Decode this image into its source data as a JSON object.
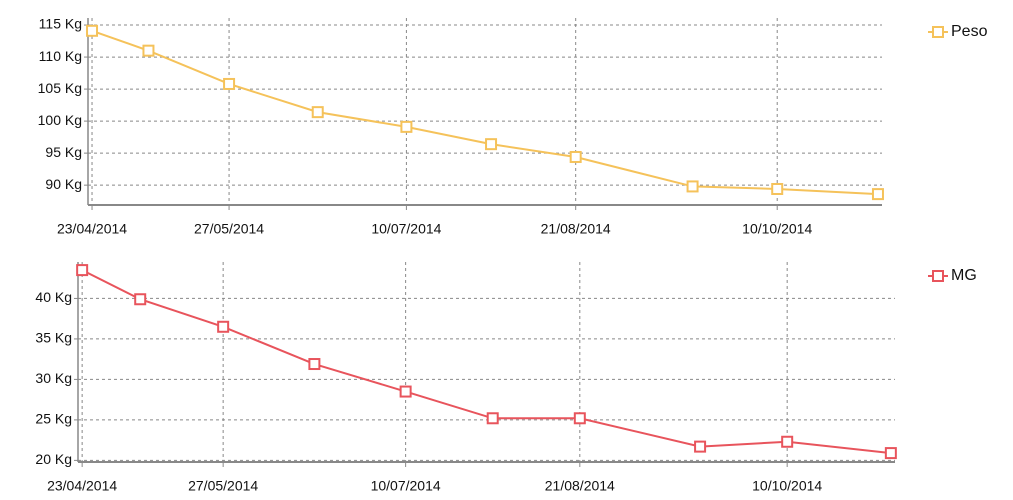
{
  "chart_data": [
    {
      "type": "line",
      "x": [
        "2014-04-23",
        "2014-05-07",
        "2014-05-27",
        "2014-06-18",
        "2014-07-10",
        "2014-07-31",
        "2014-08-21",
        "2014-09-19",
        "2014-10-10",
        "2014-11-04"
      ],
      "series": [
        {
          "name": "Peso",
          "color": "#f5c25a",
          "values": [
            114.1,
            111,
            105.8,
            101.4,
            99.1,
            96.4,
            94.4,
            89.8,
            89.4,
            88.6
          ]
        }
      ],
      "xlim": [
        "2014-04-22",
        "2014-11-05"
      ],
      "xticks": [
        {
          "value": "2014-04-23",
          "label": "23/04/2014"
        },
        {
          "value": "2014-05-27",
          "label": "27/05/2014"
        },
        {
          "value": "2014-07-10",
          "label": "10/07/2014"
        },
        {
          "value": "2014-08-21",
          "label": "21/08/2014"
        },
        {
          "value": "2014-10-10",
          "label": "10/10/2014"
        }
      ],
      "ylim": [
        86.9,
        116.1
      ],
      "yticks": [
        {
          "value": 90,
          "label": "90 Kg"
        },
        {
          "value": 95,
          "label": "95 Kg"
        },
        {
          "value": 100,
          "label": "100 Kg"
        },
        {
          "value": 105,
          "label": "105 Kg"
        },
        {
          "value": 110,
          "label": "110 Kg"
        },
        {
          "value": 115,
          "label": "115 Kg"
        }
      ],
      "grid": true,
      "legend": "right"
    },
    {
      "type": "line",
      "x": [
        "2014-04-23",
        "2014-05-07",
        "2014-05-27",
        "2014-06-18",
        "2014-07-10",
        "2014-07-31",
        "2014-08-21",
        "2014-09-19",
        "2014-10-10",
        "2014-11-04"
      ],
      "series": [
        {
          "name": "MG",
          "color": "#e8545c",
          "values": [
            43.5,
            39.9,
            36.5,
            31.9,
            28.5,
            25.2,
            25.2,
            21.7,
            22.3,
            20.9
          ]
        }
      ],
      "xlim": [
        "2014-04-22",
        "2014-11-05"
      ],
      "xticks": [
        {
          "value": "2014-04-23",
          "label": "23/04/2014"
        },
        {
          "value": "2014-05-27",
          "label": "27/05/2014"
        },
        {
          "value": "2014-07-10",
          "label": "10/07/2014"
        },
        {
          "value": "2014-08-21",
          "label": "21/08/2014"
        },
        {
          "value": "2014-10-10",
          "label": "10/10/2014"
        }
      ],
      "ylim": [
        19.8,
        44.5
      ],
      "yticks": [
        {
          "value": 20,
          "label": "20 Kg"
        },
        {
          "value": 25,
          "label": "25 Kg"
        },
        {
          "value": 30,
          "label": "30 Kg"
        },
        {
          "value": 35,
          "label": "35 Kg"
        },
        {
          "value": 40,
          "label": "40 Kg"
        }
      ],
      "grid": true,
      "legend": "right"
    }
  ]
}
